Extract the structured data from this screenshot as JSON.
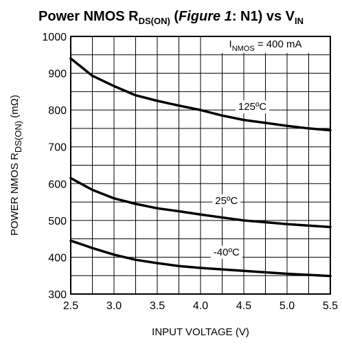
{
  "chart_data": {
    "type": "line",
    "title": {
      "pre": "Power NMOS R",
      "sub": "DS(ON)",
      "mid1": " (",
      "italic": "Figure 1",
      "mid2": ": N1) vs V",
      "sub2": "IN"
    },
    "xlabel": "INPUT VOLTAGE (V)",
    "ylabel": {
      "pre": "POWER NMOS R",
      "sub": "DS(ON)",
      "post": " (mΩ)"
    },
    "xlim": [
      2.5,
      5.5
    ],
    "ylim": [
      300,
      1000
    ],
    "x_ticks": [
      "2.5",
      "3.0",
      "3.5",
      "4.0",
      "4.5",
      "5.0",
      "5.5"
    ],
    "y_ticks": [
      "300",
      "400",
      "500",
      "600",
      "700",
      "800",
      "900",
      "1000"
    ],
    "x_tick_values": [
      2.5,
      3.0,
      3.5,
      4.0,
      4.5,
      5.0,
      5.5
    ],
    "y_tick_values": [
      300,
      400,
      500,
      600,
      700,
      800,
      900,
      1000
    ],
    "x_minor_step": 0.25,
    "y_minor_step": 50,
    "grid": true,
    "annotation": {
      "pre": "I",
      "sub": "NMOS",
      "post": " = 400 mA"
    },
    "series": [
      {
        "name": "125ºC",
        "x": [
          2.5,
          2.75,
          3.0,
          3.25,
          3.5,
          3.75,
          4.0,
          4.25,
          4.5,
          4.75,
          5.0,
          5.25,
          5.5
        ],
        "y": [
          940,
          893,
          865,
          840,
          825,
          812,
          800,
          785,
          773,
          765,
          757,
          750,
          745
        ],
        "label_x": 4.6,
        "label_y": 800
      },
      {
        "name": "25ºC",
        "x": [
          2.5,
          2.75,
          3.0,
          3.25,
          3.5,
          3.75,
          4.0,
          4.25,
          4.5,
          4.75,
          5.0,
          5.25,
          5.5
        ],
        "y": [
          615,
          583,
          560,
          545,
          533,
          525,
          516,
          508,
          500,
          495,
          490,
          486,
          482
        ],
        "label_x": 4.3,
        "label_y": 545
      },
      {
        "name": "-40ºC",
        "x": [
          2.5,
          2.75,
          3.0,
          3.25,
          3.5,
          3.75,
          4.0,
          4.25,
          4.5,
          4.75,
          5.0,
          5.25,
          5.5
        ],
        "y": [
          445,
          425,
          407,
          393,
          384,
          376,
          371,
          367,
          363,
          359,
          355,
          352,
          349
        ],
        "label_x": 4.3,
        "label_y": 405
      }
    ]
  }
}
